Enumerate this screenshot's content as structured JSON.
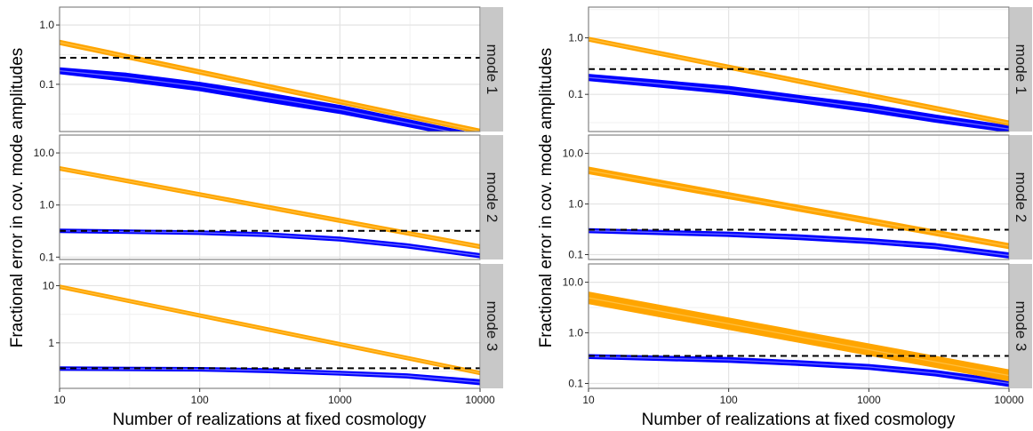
{
  "colors": {
    "estimate_band": "#ffa500",
    "estimate_center": "#ffbf3f",
    "truth_band": "#0000ff",
    "truth_center": "#6a6aff",
    "threshold": "#000000",
    "strip": "#c8c8c8",
    "panel_border": "#6e6e6e",
    "grid_major": "#e3e3e3",
    "grid_minor": "#f2f2f2"
  },
  "chart_data": [
    {
      "type": "line",
      "xlabel": "Number of realizations at fixed cosmology",
      "ylabel": "Fractional error in cov. mode amplitudes",
      "xscale": "log",
      "yscale": "log",
      "xlim": [
        10,
        10000
      ],
      "xticks": [
        10,
        100,
        1000,
        10000
      ],
      "xtick_labels": [
        "10",
        "100",
        "1000",
        "10000"
      ],
      "grid": true,
      "panels": [
        {
          "strip": "mode 1",
          "ylim": [
            0.016,
            2.0
          ],
          "yticks": [
            0.1,
            1.0
          ],
          "ytick_labels": [
            "0.1",
            "1.0"
          ],
          "threshold": 0.28,
          "series": [
            {
              "color": "orange",
              "x": [
                10,
                10000
              ],
              "lower": [
                0.48,
                0.0152
              ],
              "upper": [
                0.54,
                0.0171
              ]
            },
            {
              "color": "blue",
              "x": [
                10,
                30,
                100,
                300,
                1000,
                3000,
                10000
              ],
              "lower": [
                0.155,
                0.115,
                0.08,
                0.052,
                0.033,
                0.02,
                0.0115
              ],
              "upper": [
                0.185,
                0.15,
                0.105,
                0.07,
                0.043,
                0.025,
                0.0138
              ]
            }
          ]
        },
        {
          "strip": "mode 2",
          "ylim": [
            0.09,
            22
          ],
          "yticks": [
            0.1,
            1.0,
            10.0
          ],
          "ytick_labels": [
            "0.1",
            "1.0",
            "10.0"
          ],
          "threshold": 0.32,
          "series": [
            {
              "color": "orange",
              "x": [
                10,
                10000
              ],
              "lower": [
                4.8,
                0.15
              ],
              "upper": [
                5.3,
                0.168
              ]
            },
            {
              "color": "blue",
              "x": [
                10,
                100,
                300,
                1000,
                3000,
                10000
              ],
              "lower": [
                0.305,
                0.28,
                0.255,
                0.21,
                0.155,
                0.1
              ],
              "upper": [
                0.335,
                0.31,
                0.285,
                0.235,
                0.175,
                0.113
              ]
            }
          ]
        },
        {
          "strip": "mode 3",
          "ylim": [
            0.16,
            24
          ],
          "yticks": [
            1,
            10
          ],
          "ytick_labels": [
            "1",
            "10"
          ],
          "threshold": 0.36,
          "series": [
            {
              "color": "orange",
              "x": [
                10,
                10000
              ],
              "lower": [
                9.2,
                0.285
              ],
              "upper": [
                10.0,
                0.31
              ]
            },
            {
              "color": "blue",
              "x": [
                10,
                100,
                300,
                1000,
                3000,
                10000
              ],
              "lower": [
                0.34,
                0.33,
                0.31,
                0.28,
                0.25,
                0.19
              ],
              "upper": [
                0.37,
                0.36,
                0.345,
                0.31,
                0.28,
                0.22
              ]
            }
          ]
        }
      ]
    },
    {
      "type": "line",
      "xlabel": "Number of realizations at fixed cosmology",
      "ylabel": "Fractional error in cov. mode amplitudes",
      "xscale": "log",
      "yscale": "log",
      "xlim": [
        10,
        10000
      ],
      "xticks": [
        10,
        100,
        1000,
        10000
      ],
      "xtick_labels": [
        "10",
        "100",
        "1000",
        "10000"
      ],
      "grid": true,
      "panels": [
        {
          "strip": "mode 1",
          "ylim": [
            0.022,
            3.5
          ],
          "yticks": [
            0.1,
            1.0
          ],
          "ytick_labels": [
            "0.1",
            "1.0"
          ],
          "threshold": 0.28,
          "series": [
            {
              "color": "orange",
              "x": [
                10,
                10000
              ],
              "lower": [
                0.9,
                0.029
              ],
              "upper": [
                1.0,
                0.033
              ]
            },
            {
              "color": "blue",
              "x": [
                10,
                30,
                100,
                300,
                1000,
                3000,
                10000
              ],
              "lower": [
                0.18,
                0.14,
                0.105,
                0.075,
                0.05,
                0.033,
                0.022
              ],
              "upper": [
                0.22,
                0.175,
                0.135,
                0.095,
                0.065,
                0.042,
                0.027
              ]
            }
          ]
        },
        {
          "strip": "mode 2",
          "ylim": [
            0.08,
            23
          ],
          "yticks": [
            0.1,
            1.0,
            10.0
          ],
          "ytick_labels": [
            "0.1",
            "1.0",
            "10.0"
          ],
          "threshold": 0.31,
          "series": [
            {
              "color": "orange",
              "x": [
                10,
                10000
              ],
              "lower": [
                4.1,
                0.135
              ],
              "upper": [
                5.2,
                0.16
              ]
            },
            {
              "color": "blue",
              "x": [
                10,
                100,
                300,
                1000,
                3000,
                10000
              ],
              "lower": [
                0.28,
                0.235,
                0.205,
                0.17,
                0.135,
                0.088
              ],
              "upper": [
                0.315,
                0.27,
                0.24,
                0.2,
                0.16,
                0.105
              ]
            }
          ]
        },
        {
          "strip": "mode 3",
          "ylim": [
            0.08,
            23
          ],
          "yticks": [
            0.1,
            1.0,
            10.0
          ],
          "ytick_labels": [
            "0.1",
            "1.0",
            "10.0"
          ],
          "threshold": 0.35,
          "series": [
            {
              "color": "orange",
              "x": [
                10,
                10000
              ],
              "lower": [
                3.9,
                0.115
              ],
              "upper": [
                6.2,
                0.18
              ]
            },
            {
              "color": "blue",
              "x": [
                10,
                100,
                300,
                1000,
                3000,
                10000
              ],
              "lower": [
                0.32,
                0.27,
                0.235,
                0.195,
                0.145,
                0.09
              ],
              "upper": [
                0.36,
                0.315,
                0.275,
                0.23,
                0.175,
                0.112
              ]
            }
          ]
        }
      ]
    }
  ]
}
